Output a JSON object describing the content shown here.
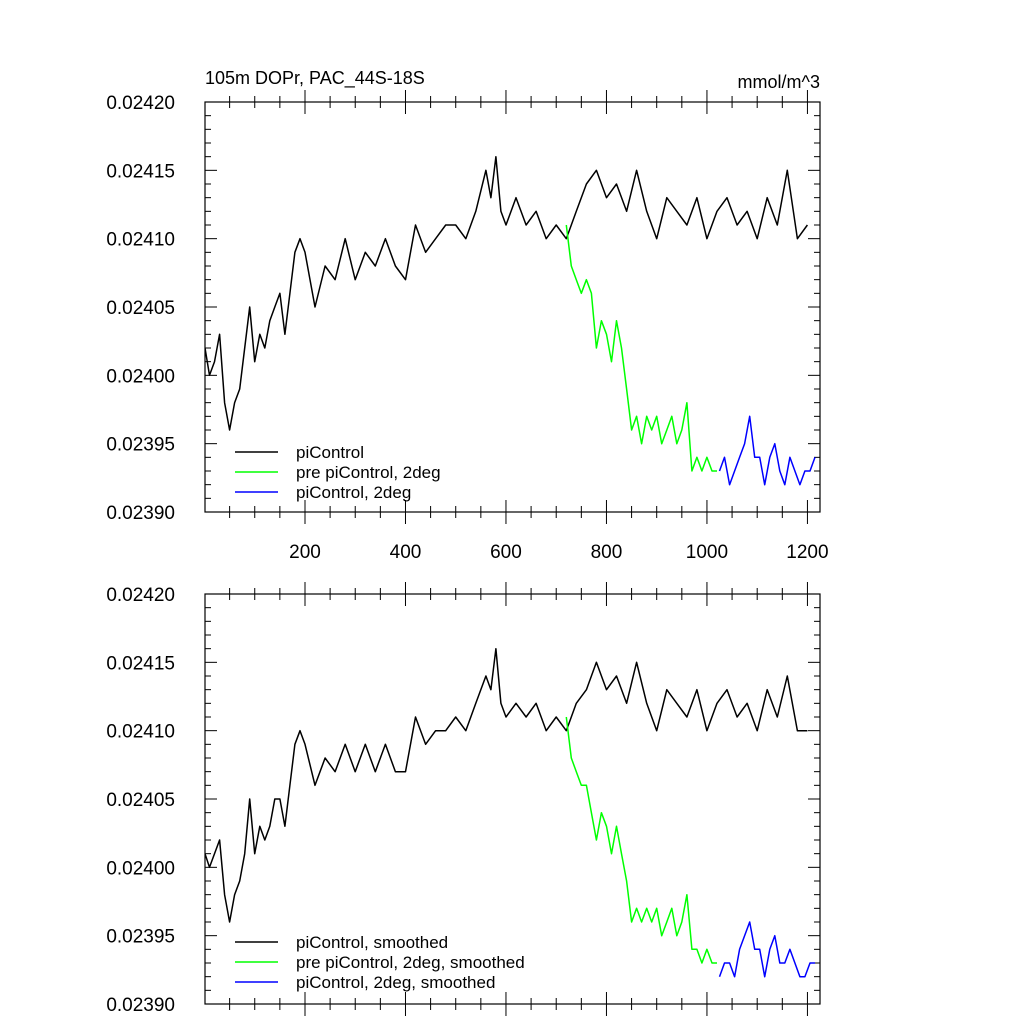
{
  "chart_data": [
    {
      "type": "line",
      "title": "105m DOPr, PAC_44S-18S",
      "units": "mmol/m^3",
      "xlabel": "",
      "ylabel": "",
      "xlim": [
        1,
        1225
      ],
      "ylim": [
        0.0239,
        0.0242
      ],
      "xticks": [
        200,
        400,
        600,
        800,
        1000,
        1200
      ],
      "xtick_labels": [
        "200",
        "400",
        "600",
        "800",
        "1000",
        "1200"
      ],
      "yticks": [
        0.0239,
        0.02395,
        0.024,
        0.02405,
        0.0241,
        0.02415,
        0.0242
      ],
      "ytick_labels": [
        "0.02390",
        "0.02395",
        "0.02400",
        "0.02405",
        "0.02410",
        "0.02415",
        "0.02420"
      ],
      "legend_location": "bottom-left",
      "series": [
        {
          "name": "piControl",
          "color": "#000000",
          "x": [
            1,
            10,
            20,
            30,
            40,
            50,
            60,
            70,
            80,
            90,
            100,
            110,
            120,
            130,
            140,
            150,
            160,
            170,
            180,
            190,
            200,
            220,
            240,
            260,
            280,
            300,
            320,
            340,
            360,
            380,
            400,
            420,
            440,
            460,
            480,
            500,
            520,
            540,
            560,
            570,
            580,
            590,
            600,
            620,
            640,
            660,
            680,
            700,
            720,
            740,
            760,
            780,
            800,
            820,
            840,
            860,
            880,
            900,
            920,
            940,
            960,
            980,
            1000,
            1020,
            1040,
            1060,
            1080,
            1100,
            1120,
            1140,
            1160,
            1180,
            1200
          ],
          "y": [
            0.02402,
            0.024,
            0.02401,
            0.02403,
            0.02398,
            0.02396,
            0.02398,
            0.02399,
            0.02402,
            0.02405,
            0.02401,
            0.02403,
            0.02402,
            0.02404,
            0.02405,
            0.02406,
            0.02403,
            0.02406,
            0.02409,
            0.0241,
            0.02409,
            0.02405,
            0.02408,
            0.02407,
            0.0241,
            0.02407,
            0.02409,
            0.02408,
            0.0241,
            0.02408,
            0.02407,
            0.02411,
            0.02409,
            0.0241,
            0.02411,
            0.02411,
            0.0241,
            0.02412,
            0.02415,
            0.02413,
            0.02416,
            0.02412,
            0.02411,
            0.02413,
            0.02411,
            0.02412,
            0.0241,
            0.02411,
            0.0241,
            0.02412,
            0.02414,
            0.02415,
            0.02413,
            0.02414,
            0.02412,
            0.02415,
            0.02412,
            0.0241,
            0.02413,
            0.02412,
            0.02411,
            0.02413,
            0.0241,
            0.02412,
            0.02413,
            0.02411,
            0.02412,
            0.0241,
            0.02413,
            0.02411,
            0.02415,
            0.0241,
            0.02411
          ]
        },
        {
          "name": "pre piControl, 2deg",
          "color": "#00ff00",
          "x": [
            720,
            730,
            740,
            750,
            760,
            770,
            780,
            790,
            800,
            810,
            820,
            830,
            840,
            850,
            860,
            870,
            880,
            890,
            900,
            910,
            920,
            930,
            940,
            950,
            960,
            970,
            980,
            990,
            1000,
            1010,
            1020
          ],
          "y": [
            0.02411,
            0.02408,
            0.02407,
            0.02406,
            0.02407,
            0.02406,
            0.02402,
            0.02404,
            0.02403,
            0.02401,
            0.02404,
            0.02402,
            0.02399,
            0.02396,
            0.02397,
            0.02395,
            0.02397,
            0.02396,
            0.02397,
            0.02395,
            0.02396,
            0.02397,
            0.02395,
            0.02396,
            0.02398,
            0.02393,
            0.02394,
            0.02393,
            0.02394,
            0.02393,
            0.02393
          ]
        },
        {
          "name": "piControl, 2deg",
          "color": "#0000ff",
          "x": [
            1025,
            1035,
            1045,
            1055,
            1065,
            1075,
            1085,
            1095,
            1105,
            1115,
            1125,
            1135,
            1145,
            1155,
            1165,
            1175,
            1185,
            1195,
            1205,
            1215
          ],
          "y": [
            0.02393,
            0.02394,
            0.02392,
            0.02393,
            0.02394,
            0.02395,
            0.02397,
            0.02394,
            0.02394,
            0.02392,
            0.02394,
            0.02395,
            0.02393,
            0.02392,
            0.02394,
            0.02393,
            0.02392,
            0.02393,
            0.02393,
            0.02394
          ]
        }
      ]
    },
    {
      "type": "line",
      "title": "",
      "xlabel": "",
      "ylabel": "",
      "xlim": [
        1,
        1225
      ],
      "ylim": [
        0.0239,
        0.0242
      ],
      "xticks": [
        200,
        400,
        600,
        800,
        1000,
        1200
      ],
      "xtick_labels": [],
      "yticks": [
        0.0239,
        0.02395,
        0.024,
        0.02405,
        0.0241,
        0.02415,
        0.0242
      ],
      "ytick_labels": [
        "0.02390",
        "0.02395",
        "0.02400",
        "0.02405",
        "0.02410",
        "0.02415",
        "0.02420"
      ],
      "legend_location": "bottom-left",
      "series": [
        {
          "name": "piControl, smoothed",
          "color": "#000000",
          "x": [
            1,
            10,
            20,
            30,
            40,
            50,
            60,
            70,
            80,
            90,
            100,
            110,
            120,
            130,
            140,
            150,
            160,
            170,
            180,
            190,
            200,
            220,
            240,
            260,
            280,
            300,
            320,
            340,
            360,
            380,
            400,
            420,
            440,
            460,
            480,
            500,
            520,
            540,
            560,
            570,
            580,
            590,
            600,
            620,
            640,
            660,
            680,
            700,
            720,
            740,
            760,
            780,
            800,
            820,
            840,
            860,
            880,
            900,
            920,
            940,
            960,
            980,
            1000,
            1020,
            1040,
            1060,
            1080,
            1100,
            1120,
            1140,
            1160,
            1180,
            1200
          ],
          "y": [
            0.02401,
            0.024,
            0.02401,
            0.02402,
            0.02398,
            0.02396,
            0.02398,
            0.02399,
            0.02401,
            0.02405,
            0.02401,
            0.02403,
            0.02402,
            0.02403,
            0.02405,
            0.02405,
            0.02403,
            0.02406,
            0.02409,
            0.0241,
            0.02409,
            0.02406,
            0.02408,
            0.02407,
            0.02409,
            0.02407,
            0.02409,
            0.02407,
            0.02409,
            0.02407,
            0.02407,
            0.02411,
            0.02409,
            0.0241,
            0.0241,
            0.02411,
            0.0241,
            0.02412,
            0.02414,
            0.02413,
            0.02416,
            0.02412,
            0.02411,
            0.02412,
            0.02411,
            0.02412,
            0.0241,
            0.02411,
            0.0241,
            0.02412,
            0.02413,
            0.02415,
            0.02413,
            0.02414,
            0.02412,
            0.02415,
            0.02412,
            0.0241,
            0.02413,
            0.02412,
            0.02411,
            0.02413,
            0.0241,
            0.02412,
            0.02413,
            0.02411,
            0.02412,
            0.0241,
            0.02413,
            0.02411,
            0.02414,
            0.0241,
            0.0241
          ]
        },
        {
          "name": "pre piControl, 2deg, smoothed",
          "color": "#00ff00",
          "x": [
            720,
            730,
            740,
            750,
            760,
            770,
            780,
            790,
            800,
            810,
            820,
            830,
            840,
            850,
            860,
            870,
            880,
            890,
            900,
            910,
            920,
            930,
            940,
            950,
            960,
            970,
            980,
            990,
            1000,
            1010,
            1020
          ],
          "y": [
            0.02411,
            0.02408,
            0.02407,
            0.02406,
            0.02406,
            0.02404,
            0.02402,
            0.02404,
            0.02403,
            0.02401,
            0.02403,
            0.02401,
            0.02399,
            0.02396,
            0.02397,
            0.02396,
            0.02397,
            0.02396,
            0.02397,
            0.02395,
            0.02396,
            0.02397,
            0.02395,
            0.02396,
            0.02398,
            0.02394,
            0.02394,
            0.02393,
            0.02394,
            0.02393,
            0.02393
          ]
        },
        {
          "name": "piControl, 2deg, smoothed",
          "color": "#0000ff",
          "x": [
            1025,
            1035,
            1045,
            1055,
            1065,
            1075,
            1085,
            1095,
            1105,
            1115,
            1125,
            1135,
            1145,
            1155,
            1165,
            1175,
            1185,
            1195,
            1205,
            1215
          ],
          "y": [
            0.02392,
            0.02393,
            0.02393,
            0.02392,
            0.02394,
            0.02395,
            0.02396,
            0.02394,
            0.02394,
            0.02392,
            0.02394,
            0.02395,
            0.02393,
            0.02393,
            0.02394,
            0.02393,
            0.02392,
            0.02392,
            0.02393,
            0.02393
          ]
        }
      ]
    }
  ]
}
